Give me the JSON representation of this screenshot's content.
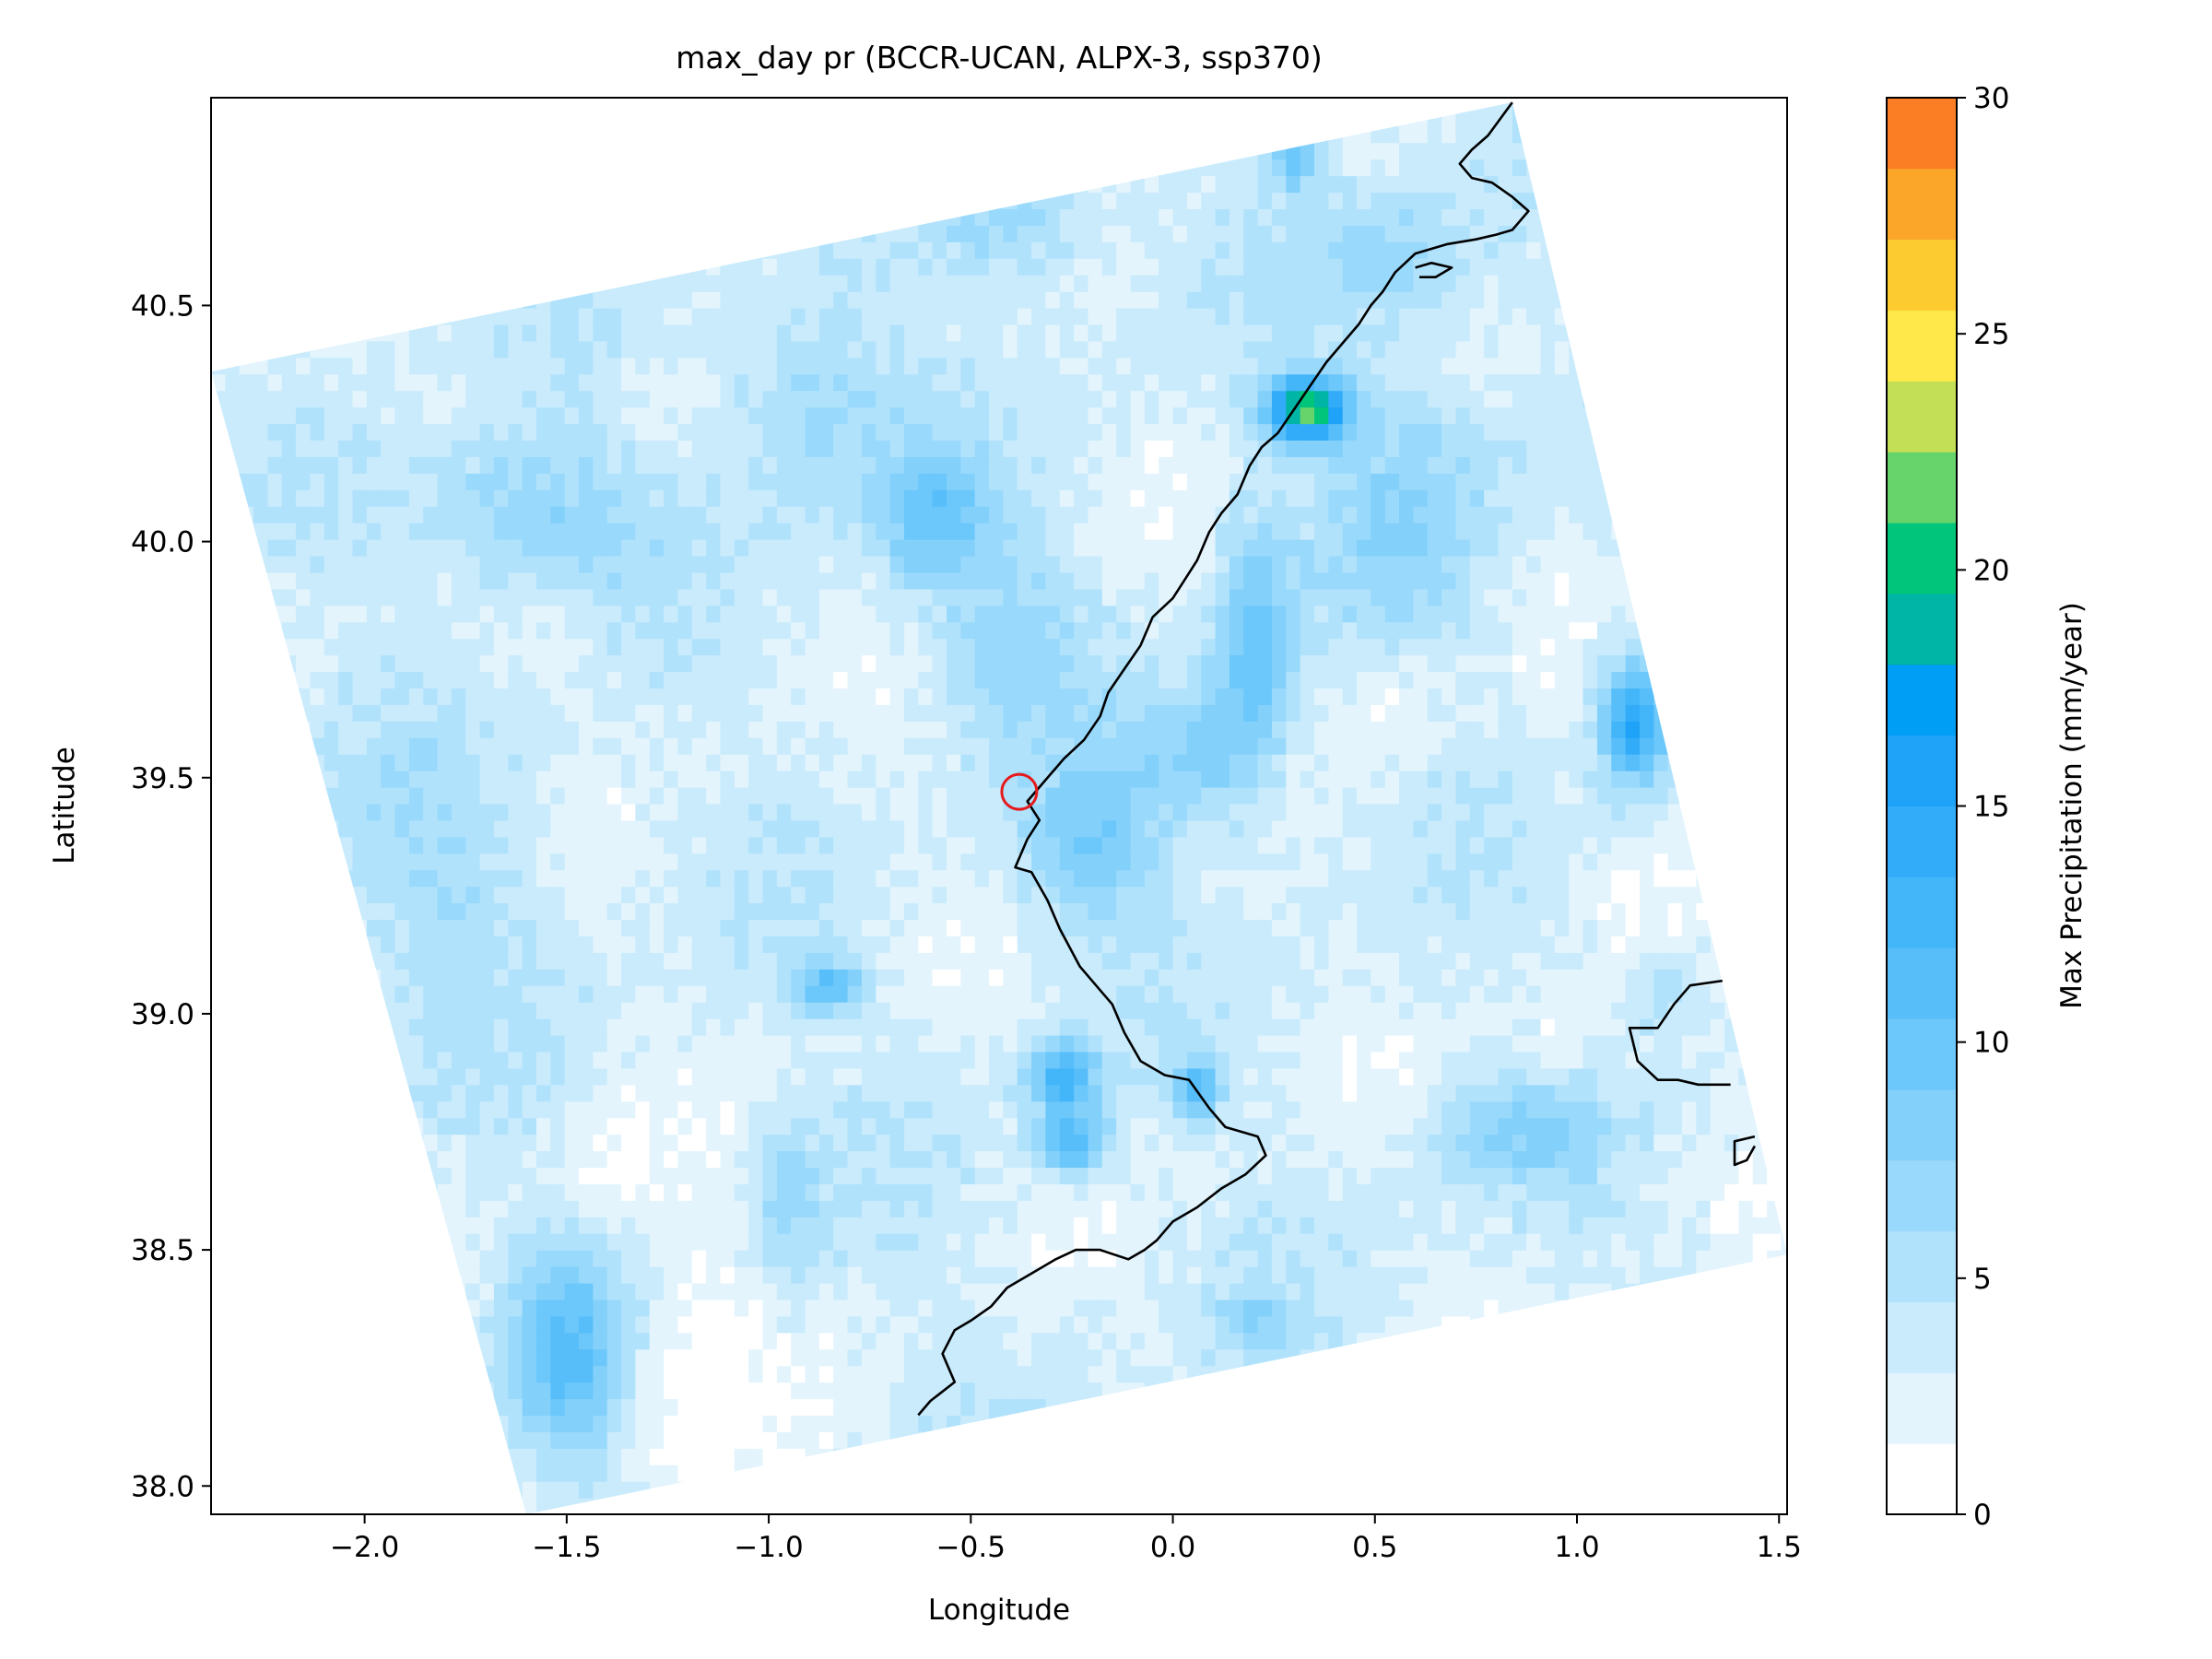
{
  "chart_data": {
    "type": "heatmap",
    "title": "max_day pr (BCCR-UCAN, ALPX-3, ssp370)",
    "xlabel": "Longitude",
    "ylabel": "Latitude",
    "xlim": [
      -2.38,
      1.52
    ],
    "ylim": [
      37.94,
      40.94
    ],
    "xticks": [
      -2.0,
      -1.5,
      -1.0,
      -0.5,
      0.0,
      0.5,
      1.0,
      1.5
    ],
    "xtick_labels": [
      "−2.0",
      "−1.5",
      "−1.0",
      "−0.5",
      "0.0",
      "0.5",
      "1.0",
      "1.5"
    ],
    "yticks": [
      38.0,
      38.5,
      39.0,
      39.5,
      40.0,
      40.5
    ],
    "ytick_labels": [
      "38.0",
      "38.5",
      "39.0",
      "39.5",
      "40.0",
      "40.5"
    ],
    "grid": false,
    "domain_corners": [
      [
        -2.38,
        40.36
      ],
      [
        0.84,
        40.93
      ],
      [
        1.52,
        38.49
      ],
      [
        -1.6,
        37.94
      ]
    ],
    "colorbar": {
      "label": "Max Precipitation (mm/year)",
      "min": 0,
      "max": 30,
      "step": 1.5,
      "ticks": [
        0,
        5,
        10,
        15,
        20,
        25,
        30
      ],
      "tick_labels": [
        "0",
        "5",
        "10",
        "15",
        "20",
        "25",
        "30"
      ],
      "colors": [
        "#ffffff",
        "#e3f4fd",
        "#c9ebfc",
        "#b1e2fc",
        "#99d9fb",
        "#83d0fb",
        "#6cc7fa",
        "#57befa",
        "#43b5f9",
        "#32acf9",
        "#1fa3f8",
        "#009ef5",
        "#00b5a5",
        "#00c57a",
        "#66d36b",
        "#c3df55",
        "#ffe84a",
        "#fccb30",
        "#fba628",
        "#fb7e24",
        "#db2e26"
      ]
    },
    "coastline": [
      [
        0.84,
        40.93
      ],
      [
        0.78,
        40.86
      ],
      [
        0.74,
        40.83
      ],
      [
        0.71,
        40.8
      ],
      [
        0.74,
        40.77
      ],
      [
        0.79,
        40.76
      ],
      [
        0.84,
        40.73
      ],
      [
        0.88,
        40.7
      ],
      [
        0.84,
        40.66
      ],
      [
        0.8,
        40.65
      ],
      [
        0.75,
        40.64
      ],
      [
        0.68,
        40.63
      ],
      [
        0.6,
        40.61
      ],
      [
        0.55,
        40.57
      ],
      [
        0.52,
        40.53
      ],
      [
        0.49,
        40.5
      ],
      [
        0.46,
        40.46
      ],
      [
        0.42,
        40.42
      ],
      [
        0.38,
        40.38
      ],
      [
        0.34,
        40.33
      ],
      [
        0.3,
        40.28
      ],
      [
        0.26,
        40.23
      ],
      [
        0.22,
        40.2
      ],
      [
        0.19,
        40.16
      ],
      [
        0.16,
        40.1
      ],
      [
        0.12,
        40.06
      ],
      [
        0.09,
        40.02
      ],
      [
        0.06,
        39.96
      ],
      [
        0.03,
        39.92
      ],
      [
        0.0,
        39.88
      ],
      [
        -0.05,
        39.84
      ],
      [
        -0.08,
        39.78
      ],
      [
        -0.12,
        39.73
      ],
      [
        -0.16,
        39.68
      ],
      [
        -0.18,
        39.63
      ],
      [
        -0.22,
        39.58
      ],
      [
        -0.27,
        39.54
      ],
      [
        -0.32,
        39.49
      ],
      [
        -0.36,
        39.45
      ],
      [
        -0.33,
        39.41
      ],
      [
        -0.36,
        39.37
      ],
      [
        -0.39,
        39.31
      ],
      [
        -0.35,
        39.3
      ],
      [
        -0.31,
        39.24
      ],
      [
        -0.28,
        39.18
      ],
      [
        -0.23,
        39.1
      ],
      [
        -0.18,
        39.05
      ],
      [
        -0.15,
        39.02
      ],
      [
        -0.12,
        38.96
      ],
      [
        -0.08,
        38.9
      ],
      [
        -0.02,
        38.87
      ],
      [
        0.04,
        38.86
      ],
      [
        0.09,
        38.8
      ],
      [
        0.13,
        38.76
      ],
      [
        0.21,
        38.74
      ],
      [
        0.23,
        38.7
      ],
      [
        0.18,
        38.66
      ],
      [
        0.12,
        38.63
      ],
      [
        0.06,
        38.59
      ],
      [
        0.0,
        38.56
      ],
      [
        -0.04,
        38.52
      ],
      [
        -0.07,
        38.5
      ],
      [
        -0.11,
        38.48
      ],
      [
        -0.18,
        38.5
      ],
      [
        -0.24,
        38.5
      ],
      [
        -0.29,
        38.48
      ],
      [
        -0.35,
        38.45
      ],
      [
        -0.41,
        38.42
      ],
      [
        -0.45,
        38.38
      ],
      [
        -0.5,
        38.35
      ],
      [
        -0.54,
        38.33
      ],
      [
        -0.57,
        38.28
      ],
      [
        -0.54,
        38.22
      ],
      [
        -0.57,
        38.2
      ],
      [
        -0.6,
        38.18
      ],
      [
        -0.63,
        38.15
      ]
    ],
    "islands": [
      [
        [
          0.6,
          40.58
        ],
        [
          0.64,
          40.59
        ],
        [
          0.69,
          40.58
        ],
        [
          0.65,
          40.56
        ],
        [
          0.61,
          40.56
        ]
      ],
      [
        [
          1.36,
          39.07
        ],
        [
          1.28,
          39.06
        ],
        [
          1.24,
          39.02
        ],
        [
          1.2,
          38.97
        ],
        [
          1.13,
          38.97
        ],
        [
          1.15,
          38.9
        ],
        [
          1.2,
          38.86
        ],
        [
          1.25,
          38.86
        ],
        [
          1.3,
          38.85
        ],
        [
          1.38,
          38.85
        ]
      ],
      [
        [
          1.44,
          38.74
        ],
        [
          1.39,
          38.73
        ],
        [
          1.39,
          38.68
        ],
        [
          1.42,
          38.69
        ],
        [
          1.44,
          38.72
        ]
      ]
    ],
    "point_marker": {
      "lon": -0.38,
      "lat": 39.47
    },
    "field_model": {
      "base": 3.2,
      "hotspots": [
        {
          "lon": 0.33,
          "lat": 40.28,
          "amp": 18.0,
          "sx": 0.07,
          "sy": 0.05
        },
        {
          "lon": 1.14,
          "lat": 39.62,
          "amp": 12.0,
          "sx": 0.06,
          "sy": 0.09
        },
        {
          "lon": -0.27,
          "lat": 38.87,
          "amp": 10.0,
          "sx": 0.06,
          "sy": 0.05
        },
        {
          "lon": -0.25,
          "lat": 38.73,
          "amp": 9.0,
          "sx": 0.06,
          "sy": 0.05
        },
        {
          "lon": 0.06,
          "lat": 38.84,
          "amp": 8.0,
          "sx": 0.04,
          "sy": 0.04
        },
        {
          "lon": -0.85,
          "lat": 39.06,
          "amp": 7.5,
          "sx": 0.06,
          "sy": 0.04
        },
        {
          "lon": 0.2,
          "lat": 39.75,
          "amp": 7.0,
          "sx": 0.07,
          "sy": 0.2
        },
        {
          "lon": 0.3,
          "lat": 40.83,
          "amp": 6.5,
          "sx": 0.05,
          "sy": 0.06
        },
        {
          "lon": -1.5,
          "lat": 38.28,
          "amp": 7.0,
          "sx": 0.1,
          "sy": 0.16
        },
        {
          "lon": -0.6,
          "lat": 40.05,
          "amp": 6.0,
          "sx": 0.1,
          "sy": 0.1
        },
        {
          "lon": -1.6,
          "lat": 40.05,
          "amp": 5.0,
          "sx": 0.2,
          "sy": 0.12
        },
        {
          "lon": -0.2,
          "lat": 39.35,
          "amp": 5.5,
          "sx": 0.12,
          "sy": 0.12
        },
        {
          "lon": 0.05,
          "lat": 39.55,
          "amp": 4.5,
          "sx": 0.1,
          "sy": 0.1
        },
        {
          "lon": -0.4,
          "lat": 40.7,
          "amp": 4.5,
          "sx": 0.15,
          "sy": 0.1
        },
        {
          "lon": -0.9,
          "lat": 40.3,
          "amp": 4.0,
          "sx": 0.15,
          "sy": 0.15
        },
        {
          "lon": 0.85,
          "lat": 38.75,
          "amp": 4.0,
          "sx": 0.15,
          "sy": 0.08
        },
        {
          "lon": 0.6,
          "lat": 40.1,
          "amp": 4.0,
          "sx": 0.15,
          "sy": 0.2
        },
        {
          "lon": -0.95,
          "lat": 38.6,
          "amp": 3.5,
          "sx": 0.06,
          "sy": 0.12
        },
        {
          "lon": -0.4,
          "lat": 39.8,
          "amp": 3.5,
          "sx": 0.15,
          "sy": 0.15
        },
        {
          "lon": 0.55,
          "lat": 40.6,
          "amp": 3.5,
          "sx": 0.15,
          "sy": 0.1
        },
        {
          "lon": -1.8,
          "lat": 39.3,
          "amp": 2.5,
          "sx": 0.2,
          "sy": 0.2
        },
        {
          "lon": 1.22,
          "lat": 39.05,
          "amp": 3.5,
          "sx": 0.05,
          "sy": 0.06
        },
        {
          "lon": 0.2,
          "lat": 38.35,
          "amp": 3.5,
          "sx": 0.06,
          "sy": 0.04
        }
      ],
      "lows": [
        {
          "lon": -1.2,
          "lat": 38.2,
          "amp": 3.0,
          "sx": 0.12,
          "sy": 0.2
        },
        {
          "lon": -1.4,
          "lat": 38.65,
          "amp": 1.8,
          "sx": 0.1,
          "sy": 0.1
        },
        {
          "lon": 0.55,
          "lat": 39.65,
          "amp": 1.8,
          "sx": 0.1,
          "sy": 0.08
        },
        {
          "lon": 0.95,
          "lat": 38.95,
          "amp": 1.5,
          "sx": 0.1,
          "sy": 0.08
        },
        {
          "lon": -1.3,
          "lat": 40.3,
          "amp": 1.5,
          "sx": 0.08,
          "sy": 0.06
        },
        {
          "lon": -1.55,
          "lat": 39.8,
          "amp": 1.2,
          "sx": 0.1,
          "sy": 0.08
        }
      ]
    }
  }
}
